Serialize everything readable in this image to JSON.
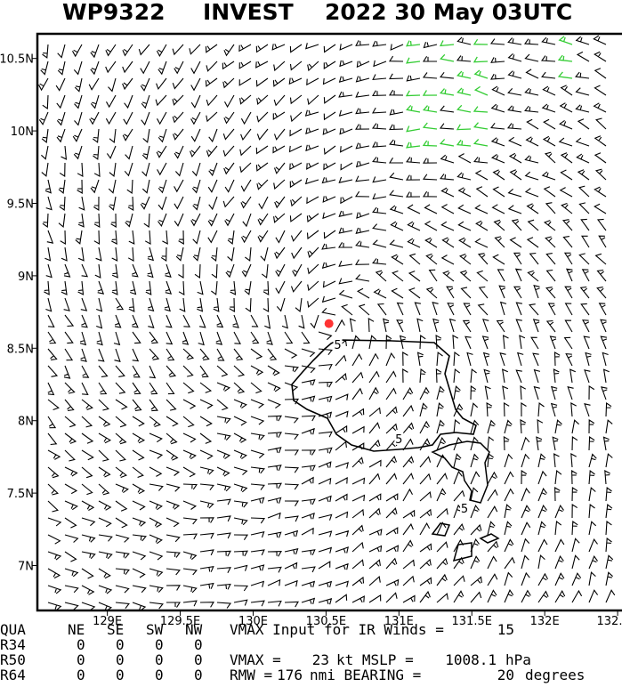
{
  "header": {
    "storm_id": "WP9322",
    "storm_type": "INVEST",
    "date": "2022 30 May 03UTC"
  },
  "map": {
    "xlim": [
      128.52,
      132.53
    ],
    "ylim": [
      6.69,
      10.67
    ],
    "xticks": [
      {
        "value": 129,
        "label": "129E"
      },
      {
        "value": 129.5,
        "label": "129.5E"
      },
      {
        "value": 130,
        "label": "130E"
      },
      {
        "value": 130.5,
        "label": "130.5E"
      },
      {
        "value": 131,
        "label": "131E"
      },
      {
        "value": 131.5,
        "label": "131.5E"
      },
      {
        "value": 132,
        "label": "132E"
      },
      {
        "value": 132.5,
        "label": "132."
      }
    ],
    "yticks": [
      {
        "value": 7,
        "label": "7N"
      },
      {
        "value": 7.5,
        "label": "7.5N"
      },
      {
        "value": 8,
        "label": "8N"
      },
      {
        "value": 8.5,
        "label": "8.5N"
      },
      {
        "value": 9,
        "label": "9N"
      },
      {
        "value": 9.5,
        "label": "9.5N"
      },
      {
        "value": 10,
        "label": "10N"
      },
      {
        "value": 10.5,
        "label": "10.5N"
      }
    ],
    "center": {
      "lon": 130.52,
      "lat": 8.67
    },
    "contour_labels": [
      {
        "lon": 130.58,
        "lat": 8.52,
        "text": 5
      },
      {
        "lon": 131.0,
        "lat": 7.87,
        "text": 5
      },
      {
        "lon": 131.45,
        "lat": 7.39,
        "text": 5
      }
    ]
  },
  "footer": {
    "radii": {
      "header": [
        "QUA",
        "NE",
        "SE",
        "SW",
        "NW"
      ],
      "rows": [
        [
          "R34",
          0,
          0,
          0,
          0
        ],
        [
          "R50",
          0,
          0,
          0,
          0
        ],
        [
          "R64",
          0,
          0,
          0,
          0
        ]
      ]
    },
    "ir_label": "VMAX Input for IR Winds =",
    "ir_value": 15,
    "vmax_label": "VMAX =",
    "vmax": 23,
    "mslp_label": "kt MSLP =",
    "mslp": 1008.1,
    "mslp_unit": "hPa",
    "rmw_label": "RMW =",
    "rmw": 176,
    "bearing_label": "nmi BEARING =",
    "bearing": 20,
    "bearing_unit": "degrees"
  }
}
